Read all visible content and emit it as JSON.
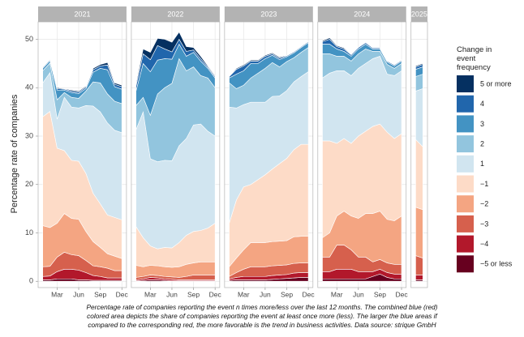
{
  "chart_data": {
    "type": "area",
    "stacked": true,
    "ylabel": "Percentage rate of companies",
    "ylim": [
      -1.3,
      53.6
    ],
    "yticks": [
      0,
      10,
      20,
      30,
      40,
      50
    ],
    "grid": true,
    "legend_title": "Change in event frequency",
    "legend": [
      {
        "name": "5 or more",
        "color": "#053061"
      },
      {
        "name": "4",
        "color": "#2166ac"
      },
      {
        "name": "3",
        "color": "#4393c3"
      },
      {
        "name": "2",
        "color": "#92c5de"
      },
      {
        "name": "1",
        "color": "#d1e5f0"
      },
      {
        "name": "−1",
        "color": "#fddbc7"
      },
      {
        "name": "−2",
        "color": "#f4a582"
      },
      {
        "name": "−3",
        "color": "#d6604d"
      },
      {
        "name": "−4",
        "color": "#b2182b"
      },
      {
        "name": "−5 or less",
        "color": "#67001f"
      }
    ],
    "facets": [
      {
        "title": "2021",
        "categories": [
          null,
          null,
          "Mar",
          null,
          null,
          "Jun",
          null,
          null,
          "Sep",
          null,
          null,
          "Dec"
        ],
        "series": [
          {
            "values": [
              0.1,
              0.1,
              0.2,
              0.1,
              0.2,
              0.2,
              0.2,
              0.3,
              0.3,
              0.5,
              0.3,
              0.3
            ]
          },
          {
            "values": [
              0.2,
              0.2,
              0.3,
              0.2,
              0.3,
              0.3,
              0.3,
              0.5,
              0.5,
              1,
              0.5,
              0.5
            ]
          },
          {
            "values": [
              0.5,
              0.5,
              2,
              0.5,
              1,
              1,
              0.5,
              2,
              3,
              5,
              3,
              3
            ]
          },
          {
            "values": [
              2.5,
              2,
              4,
              1,
              2,
              2,
              3,
              5,
              6,
              6,
              6,
              6
            ]
          },
          {
            "values": [
              7,
              8,
              6,
              11,
              11,
              11,
              14,
              18,
              19,
              19,
              18,
              18
            ]
          },
          {
            "values": [
              22.5,
              24,
              15.5,
              13,
              12,
              12,
              12,
              10,
              9,
              8,
              8,
              8
            ]
          },
          {
            "values": [
              8.5,
              8,
              7,
              8,
              7.5,
              7.5,
              6,
              5,
              4,
              3,
              3,
              2.5
            ]
          },
          {
            "values": [
              2,
              2,
              3,
              3.5,
              3,
              3,
              2.5,
              2,
              2,
              2,
              1.5,
              1.5
            ]
          },
          {
            "values": [
              0.7,
              0.8,
              1.5,
              2,
              2,
              2,
              1.5,
              1,
              0.8,
              0.5,
              0.5,
              0.5
            ]
          },
          {
            "values": [
              0.3,
              0.3,
              0.5,
              0.5,
              0.5,
              0.3,
              0.3,
              0.2,
              0.2,
              0.2,
              0.2,
              0.2
            ]
          }
        ]
      },
      {
        "title": "2022",
        "categories": [
          null,
          null,
          "Mar",
          null,
          null,
          "Jun",
          null,
          null,
          "Sep",
          null,
          null,
          "Dec"
        ],
        "series": [
          {
            "values": [
              0.5,
              1,
              1.5,
              1.5,
              2,
              2,
              1.5,
              1,
              0.5,
              0.5,
              0.2,
              0.2
            ]
          },
          {
            "values": [
              1,
              2,
              2.5,
              3,
              2,
              1.5,
              1,
              1,
              0.5,
              0.5,
              0.3,
              0.3
            ]
          },
          {
            "values": [
              3,
              7,
              9,
              7,
              6,
              5,
              3,
              3,
              3,
              3,
              2,
              2
            ]
          },
          {
            "values": [
              5,
              3,
              9,
              14,
              15,
              16,
              18,
              14,
              12,
              10,
              11,
              10
            ]
          },
          {
            "values": [
              20,
              26,
              18,
              18,
              18,
              18,
              20,
              20,
              22,
              22,
              20,
              18
            ]
          },
          {
            "values": [
              8,
              6,
              4,
              3.5,
              4,
              4,
              5,
              6,
              6.5,
              6.5,
              7,
              8
            ]
          },
          {
            "values": [
              2.5,
              2,
              2,
              2,
              2,
              2,
              2.2,
              2.5,
              2.5,
              2.7,
              2.7,
              2.7
            ]
          },
          {
            "values": [
              0.5,
              0.5,
              0.5,
              0.5,
              0.5,
              0.5,
              0.5,
              0.7,
              1,
              1,
              1,
              1
            ]
          },
          {
            "values": [
              0.2,
              0.3,
              0.5,
              0.4,
              0.3,
              0.3,
              0.2,
              0.2,
              0.2,
              0.2,
              0.2,
              0.2
            ]
          },
          {
            "values": [
              0.1,
              0.2,
              0.3,
              0.3,
              0.2,
              0.1,
              0.1,
              0.1,
              0.1,
              0.1,
              0.1,
              0.1
            ]
          }
        ]
      },
      {
        "title": "2023",
        "categories": [
          null,
          null,
          "Mar",
          null,
          null,
          "Jun",
          null,
          null,
          "Sep",
          null,
          null,
          "Dec"
        ],
        "series": [
          {
            "values": [
              0.1,
              0.2,
              0.2,
              0.2,
              0.2,
              0.2,
              0.2,
              0.2,
              0.1,
              0.1,
              0.1,
              0.1
            ]
          },
          {
            "values": [
              0.3,
              1,
              1,
              0.5,
              0.5,
              0.5,
              0.3,
              0.3,
              0.2,
              0.2,
              0.2,
              0.2
            ]
          },
          {
            "values": [
              1,
              3,
              3,
              3,
              2,
              2,
              1.5,
              1.5,
              1,
              1,
              1,
              1
            ]
          },
          {
            "values": [
              5,
              4,
              4,
              5,
              6,
              7,
              7,
              6,
              6,
              5,
              5,
              5
            ]
          },
          {
            "values": [
              24,
              19,
              17,
              17,
              16,
              15,
              15,
              14,
              14,
              14,
              14,
              15
            ]
          },
          {
            "values": [
              9,
              12,
              13,
              12,
              13,
              14,
              15,
              16,
              17,
              18,
              19,
              19
            ]
          },
          {
            "values": [
              2,
              3,
              4,
              5,
              5,
              5,
              5,
              5,
              5,
              5.5,
              5.5,
              5.5
            ]
          },
          {
            "values": [
              0.5,
              1,
              1.5,
              2,
              2,
              2,
              2,
              2,
              2,
              2,
              2,
              2
            ]
          },
          {
            "values": [
              0.3,
              0.5,
              0.7,
              0.7,
              0.7,
              0.7,
              0.8,
              0.8,
              0.8,
              1,
              1,
              1
            ]
          },
          {
            "values": [
              0.2,
              0.3,
              0.3,
              0.3,
              0.3,
              0.3,
              0.4,
              0.5,
              0.6,
              0.7,
              0.8,
              0.8
            ]
          }
        ]
      },
      {
        "title": "2024",
        "categories": [
          null,
          null,
          "Mar",
          null,
          null,
          "Jun",
          null,
          null,
          "Sep",
          null,
          null,
          "Dec"
        ],
        "series": [
          {
            "values": [
              0.2,
              0.3,
              0.2,
              0.2,
              0.1,
              0.1,
              0.1,
              0.1,
              0.1,
              0.1,
              0.1,
              0.1
            ]
          },
          {
            "values": [
              0.5,
              1,
              0.5,
              0.5,
              0.3,
              0.3,
              0.3,
              0.2,
              0.2,
              0.2,
              0.2,
              0.2
            ]
          },
          {
            "values": [
              2,
              2,
              1.5,
              1,
              1,
              1,
              1,
              0.5,
              0.5,
              0.5,
              0.5,
              0.5
            ]
          },
          {
            "values": [
              5,
              4,
              3,
              3,
              3,
              3,
              3,
              1.5,
              1,
              2,
              1.5,
              1.5
            ]
          },
          {
            "values": [
              13,
              14,
              15,
              14,
              14,
              14,
              14,
              14,
              14,
              12,
              13,
              13
            ]
          },
          {
            "values": [
              20,
              19,
              15,
              15,
              15,
              17,
              17,
              18,
              18,
              18,
              17,
              17
            ]
          },
          {
            "values": [
              4,
              5,
              6,
              7,
              7,
              8,
              9,
              10,
              10,
              9,
              9,
              10
            ]
          },
          {
            "values": [
              3,
              3,
              5,
              5,
              4,
              3,
              3,
              2,
              2,
              2,
              2,
              2
            ]
          },
          {
            "values": [
              1.5,
              1.5,
              2,
              2,
              2,
              1.5,
              1.5,
              1,
              1,
              1,
              1,
              1
            ]
          },
          {
            "values": [
              0.5,
              0.5,
              0.5,
              0.5,
              0.5,
              0.5,
              0.5,
              1,
              1.5,
              0.8,
              0.5,
              0.5
            ]
          }
        ]
      },
      {
        "title": "2025",
        "categories": [
          null,
          null
        ],
        "series": [
          {
            "values": [
              0.2,
              0.2
            ]
          },
          {
            "values": [
              0.5,
              0.5
            ]
          },
          {
            "values": [
              1.5,
              1.5
            ]
          },
          {
            "values": [
              3,
              3
            ]
          },
          {
            "values": [
              10,
              12
            ]
          },
          {
            "values": [
              14,
              13
            ]
          },
          {
            "values": [
              10,
              10
            ]
          },
          {
            "values": [
              4,
              3.5
            ]
          },
          {
            "values": [
              1,
              1
            ]
          },
          {
            "values": [
              0.3,
              0.3
            ]
          }
        ]
      }
    ],
    "caption": [
      "Percentage rate of companies reporting the event n times more/less over the last 12 months. The combined blue (red)",
      "colored area depicts the share of companies reporting the event at least once more (less). The larger the blue areas if",
      "compared to the corresponding red, the more favorable is the trend in business activities. Data source: strique GmbH"
    ]
  }
}
